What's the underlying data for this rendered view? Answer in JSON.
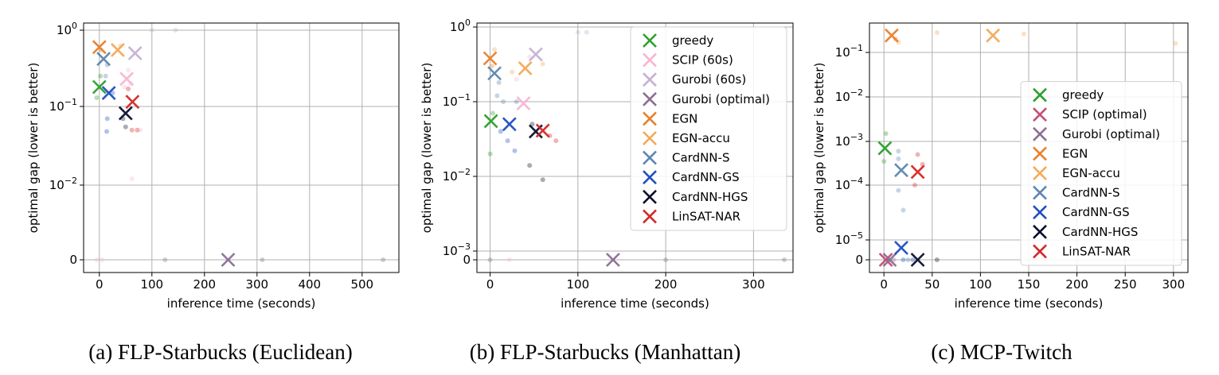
{
  "chart_data": [
    {
      "type": "scatter",
      "caption": "(a) FLP-Starbucks (Euclidean)",
      "xlabel": "inference time (seconds)",
      "ylabel": "optimal gap (lower is better)",
      "xlim": [
        -30,
        570
      ],
      "x_ticks": [
        0,
        100,
        200,
        300,
        400,
        500
      ],
      "y_ticks": [
        {
          "value": 0,
          "base": "0",
          "exp": ""
        },
        {
          "value": 0.01,
          "base": "10",
          "exp": "−2"
        },
        {
          "value": 0.1,
          "base": "10",
          "exp": "−1"
        },
        {
          "value": 1,
          "base": "10",
          "exp": "0"
        }
      ],
      "legend": null,
      "series": [
        {
          "name": "greedy",
          "color": "#2ca02c",
          "points": [
            [
              0,
              0.18
            ]
          ],
          "faint": [
            [
              -5,
              0.13
            ],
            [
              2,
              0.25
            ]
          ]
        },
        {
          "name": "SCIP (60s)",
          "color": "#f7b6d2",
          "points": [
            [
              52,
              0.23
            ]
          ],
          "faint": [
            [
              48,
              0.18
            ],
            [
              55,
              0.3
            ],
            [
              60,
              0.2
            ],
            [
              78,
              0.05
            ],
            [
              62,
              0.012
            ],
            [
              -5,
              0
            ],
            [
              5,
              0
            ]
          ]
        },
        {
          "name": "Gurobi (60s)",
          "color": "#c5b0d5",
          "points": [
            [
              68,
              0.5
            ]
          ],
          "faint": [
            [
              100,
              1.0
            ],
            [
              145,
              1.0
            ]
          ]
        },
        {
          "name": "Gurobi (optimal)",
          "color": "#8c6d93",
          "points": [
            [
              245,
              0
            ]
          ],
          "faint": [
            [
              125,
              0
            ],
            [
              310,
              0
            ],
            [
              540,
              0
            ]
          ]
        },
        {
          "name": "EGN",
          "color": "#e8802a",
          "points": [
            [
              0,
              0.6
            ]
          ],
          "faint": [
            [
              3,
              0.55
            ]
          ]
        },
        {
          "name": "EGN-accu",
          "color": "#f4a855",
          "points": [
            [
              35,
              0.55
            ]
          ],
          "faint": [
            [
              40,
              0.62
            ]
          ]
        },
        {
          "name": "CardNN-S",
          "color": "#5d86b0",
          "points": [
            [
              8,
              0.42
            ]
          ],
          "faint": [
            [
              15,
              0.35
            ],
            [
              12,
              0.25
            ]
          ]
        },
        {
          "name": "CardNN-GS",
          "color": "#1f4fbf",
          "points": [
            [
              18,
              0.15
            ]
          ],
          "faint": [
            [
              15,
              0.07
            ],
            [
              14,
              0.048
            ],
            [
              25,
              0.15
            ]
          ]
        },
        {
          "name": "CardNN-HGS",
          "color": "#0a0f2c",
          "points": [
            [
              50,
              0.082
            ]
          ],
          "faint": [
            [
              50,
              0.055
            ],
            [
              45,
              0.07
            ]
          ]
        },
        {
          "name": "LinSAT-NAR",
          "color": "#d62728",
          "points": [
            [
              63,
              0.115
            ]
          ],
          "faint": [
            [
              62,
              0.05
            ],
            [
              72,
              0.05
            ],
            [
              55,
              0.17
            ]
          ]
        }
      ]
    },
    {
      "type": "scatter",
      "caption": "(b) FLP-Starbucks (Manhattan)",
      "xlabel": "inference time (seconds)",
      "ylabel": "optimal gap (lower is better)",
      "xlim": [
        -15,
        345
      ],
      "x_ticks": [
        0,
        100,
        200,
        300
      ],
      "y_ticks": [
        {
          "value": 0,
          "base": "0",
          "exp": ""
        },
        {
          "value": 0.001,
          "base": "10",
          "exp": "−3"
        },
        {
          "value": 0.01,
          "base": "10",
          "exp": "−2"
        },
        {
          "value": 0.1,
          "base": "10",
          "exp": "−1"
        },
        {
          "value": 1,
          "base": "10",
          "exp": "0"
        }
      ],
      "legend": {
        "position": "upper right",
        "entries": [
          "greedy",
          "SCIP (60s)",
          "Gurobi (60s)",
          "Gurobi (optimal)",
          "EGN",
          "EGN-accu",
          "CardNN-S",
          "CardNN-GS",
          "CardNN-HGS",
          "LinSAT-NAR"
        ]
      },
      "series": [
        {
          "name": "greedy",
          "color": "#2ca02c",
          "points": [
            [
              1,
              0.055
            ]
          ],
          "faint": [
            [
              0,
              0.02
            ],
            [
              3,
              0.07
            ]
          ]
        },
        {
          "name": "SCIP (60s)",
          "color": "#f7b6d2",
          "points": [
            [
              38,
              0.095
            ]
          ],
          "faint": [
            [
              30,
              0.2
            ],
            [
              45,
              0.4
            ],
            [
              22,
              0
            ]
          ]
        },
        {
          "name": "Gurobi (60s)",
          "color": "#c5b0d5",
          "points": [
            [
              52,
              0.43
            ]
          ],
          "faint": [
            [
              100,
              0.85
            ],
            [
              110,
              0.85
            ]
          ]
        },
        {
          "name": "Gurobi (optimal)",
          "color": "#8c6d93",
          "points": [
            [
              140,
              0
            ]
          ],
          "faint": [
            [
              200,
              0
            ],
            [
              335,
              0
            ],
            [
              0,
              0
            ]
          ]
        },
        {
          "name": "EGN",
          "color": "#e8802a",
          "points": [
            [
              0,
              0.38
            ]
          ],
          "faint": [
            [
              2,
              0.3
            ]
          ]
        },
        {
          "name": "EGN-accu",
          "color": "#f4a855",
          "points": [
            [
              40,
              0.28
            ]
          ],
          "faint": [
            [
              60,
              0.32
            ],
            [
              25,
              0.25
            ],
            [
              5,
              0.5
            ]
          ]
        },
        {
          "name": "CardNN-S",
          "color": "#5d86b0",
          "points": [
            [
              5,
              0.24
            ]
          ],
          "faint": [
            [
              10,
              0.18
            ],
            [
              8,
              0.12
            ],
            [
              15,
              0.1
            ],
            [
              30,
              0.1
            ]
          ]
        },
        {
          "name": "CardNN-GS",
          "color": "#1f4fbf",
          "points": [
            [
              22,
              0.05
            ]
          ],
          "faint": [
            [
              28,
              0.022
            ],
            [
              20,
              0.03
            ],
            [
              12,
              0.04
            ]
          ]
        },
        {
          "name": "CardNN-HGS",
          "color": "#0a0f2c",
          "points": [
            [
              52,
              0.04
            ]
          ],
          "faint": [
            [
              45,
              0.014
            ],
            [
              60,
              0.009
            ],
            [
              48,
              0.05
            ]
          ]
        },
        {
          "name": "LinSAT-NAR",
          "color": "#d62728",
          "points": [
            [
              60,
              0.041
            ]
          ],
          "faint": [
            [
              75,
              0.03
            ],
            [
              68,
              0.035
            ]
          ]
        }
      ]
    },
    {
      "type": "scatter",
      "caption": "(c) MCP-Twitch",
      "xlabel": "inference time (seconds)",
      "ylabel": "optimal gap (lower is better)",
      "xlim": [
        -15,
        315
      ],
      "x_ticks": [
        0,
        50,
        100,
        150,
        200,
        250,
        300
      ],
      "y_ticks": [
        {
          "value": 0,
          "base": "0",
          "exp": ""
        },
        {
          "value": 1e-05,
          "base": "10",
          "exp": "−5"
        },
        {
          "value": 0.0001,
          "base": "10",
          "exp": "−4"
        },
        {
          "value": 0.001,
          "base": "10",
          "exp": "−3"
        },
        {
          "value": 0.01,
          "base": "10",
          "exp": "−2"
        },
        {
          "value": 0.1,
          "base": "10",
          "exp": "−1"
        }
      ],
      "legend": {
        "position": "lower right",
        "entries": [
          "greedy",
          "SCIP (optimal)",
          "Gurobi (optimal)",
          "EGN",
          "EGN-accu",
          "CardNN-S",
          "CardNN-GS",
          "CardNN-HGS",
          "LinSAT-NAR"
        ]
      },
      "series": [
        {
          "name": "greedy",
          "color": "#2ca02c",
          "points": [
            [
              1,
              0.0007
            ]
          ],
          "faint": [
            [
              2,
              0.0015
            ],
            [
              0,
              0.00035
            ]
          ]
        },
        {
          "name": "SCIP (optimal)",
          "color": "#c44e6e",
          "points": [
            [
              2,
              0
            ]
          ],
          "faint": [
            [
              5,
              0
            ]
          ]
        },
        {
          "name": "Gurobi (optimal)",
          "color": "#8c6d93",
          "points": [
            [
              6,
              0
            ]
          ],
          "faint": [
            [
              10,
              0
            ]
          ]
        },
        {
          "name": "EGN",
          "color": "#e8802a",
          "points": [
            [
              8,
              0.24
            ]
          ],
          "faint": [
            [
              12,
              0.2
            ]
          ]
        },
        {
          "name": "EGN-accu",
          "color": "#f4a855",
          "points": [
            [
              113,
              0.24
            ]
          ],
          "faint": [
            [
              15,
              0.17
            ],
            [
              55,
              0.28
            ],
            [
              145,
              0.26
            ],
            [
              302,
              0.16
            ]
          ]
        },
        {
          "name": "CardNN-S",
          "color": "#5d86b0",
          "points": [
            [
              18,
              0.00022
            ]
          ],
          "faint": [
            [
              15,
              0.0006
            ],
            [
              15,
              8e-05
            ],
            [
              20,
              3.5e-05
            ],
            [
              15,
              0.0004
            ],
            [
              25,
              0
            ]
          ]
        },
        {
          "name": "CardNN-GS",
          "color": "#1f4fbf",
          "points": [
            [
              18,
              4e-06
            ]
          ],
          "faint": [
            [
              30,
              0
            ],
            [
              20,
              0
            ]
          ]
        },
        {
          "name": "CardNN-HGS",
          "color": "#0a0f2c",
          "points": [
            [
              35,
              0
            ]
          ],
          "faint": [
            [
              55,
              0
            ]
          ]
        },
        {
          "name": "LinSAT-NAR",
          "color": "#d62728",
          "points": [
            [
              35,
              0.0002
            ]
          ],
          "faint": [
            [
              35,
              0.0005
            ],
            [
              40,
              0.0003
            ],
            [
              32,
              0.0001
            ]
          ]
        }
      ]
    }
  ]
}
